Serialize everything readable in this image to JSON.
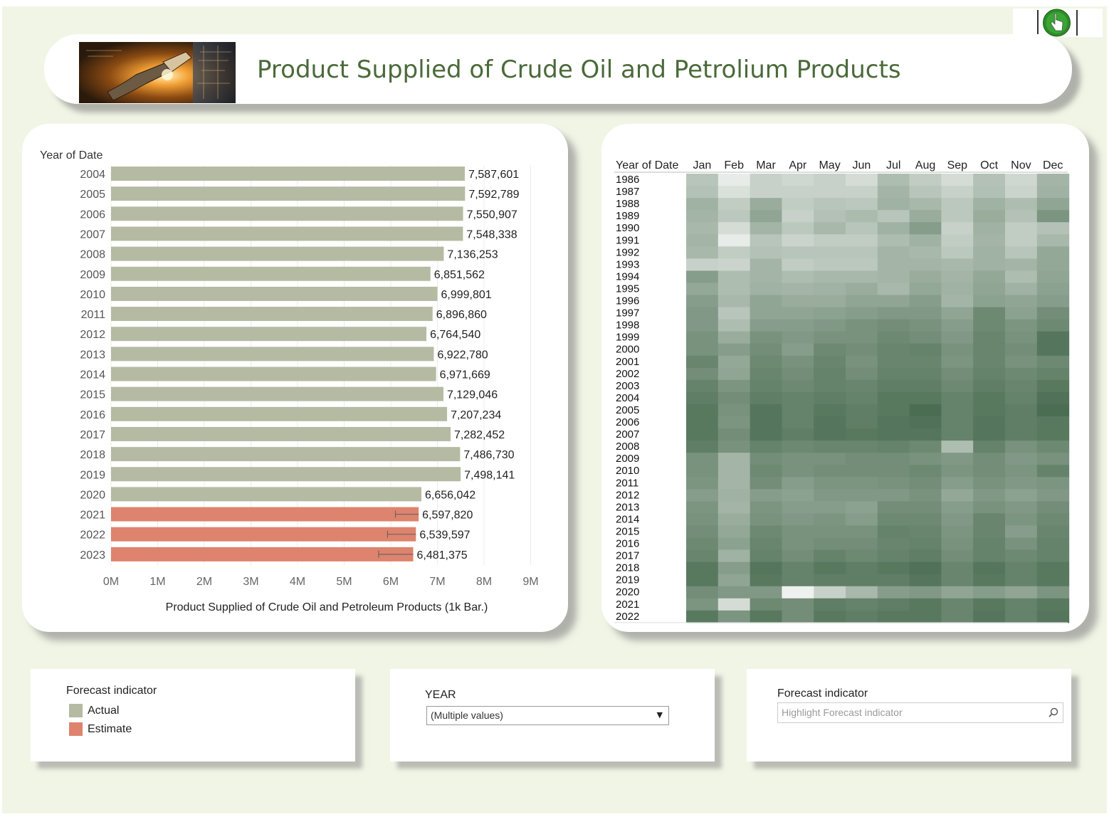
{
  "header": {
    "title": "Product Supplied of Crude Oil and Petrolium Products",
    "banner_icon": "oil-pump-nozzle-banner",
    "toolbar_icon": "hand-pointer-icon"
  },
  "colors": {
    "background": "#f1f5e6",
    "title": "#4a6a3a",
    "actual": "#b4bba2",
    "estimate": "#de836d",
    "heat_low": "#f2f4f2",
    "heat_high": "#2e5636"
  },
  "chart_data": [
    {
      "type": "bar",
      "orientation": "horizontal",
      "y_header": "Year of Date",
      "xlabel": "Product Supplied of Crude Oil and Petroleum Products (1k Bar.)",
      "xlim": [
        0,
        9000000
      ],
      "x_ticks": [
        "0M",
        "1M",
        "2M",
        "3M",
        "4M",
        "5M",
        "6M",
        "7M",
        "8M",
        "9M"
      ],
      "x_tick_values": [
        0,
        1000000,
        2000000,
        3000000,
        4000000,
        5000000,
        6000000,
        7000000,
        8000000,
        9000000
      ],
      "grid": true,
      "categories": [
        "2004",
        "2005",
        "2006",
        "2007",
        "2008",
        "2009",
        "2010",
        "2011",
        "2012",
        "2013",
        "2014",
        "2015",
        "2016",
        "2017",
        "2018",
        "2019",
        "2020",
        "2021",
        "2022",
        "2023"
      ],
      "values": [
        7587601,
        7592789,
        7550907,
        7548338,
        7136253,
        6851562,
        6999801,
        6896860,
        6764540,
        6922780,
        6971669,
        7129046,
        7207234,
        7282452,
        7486730,
        7498141,
        6656042,
        6597820,
        6539597,
        6481375
      ],
      "value_labels": [
        "7,587,601",
        "7,592,789",
        "7,550,907",
        "7,548,338",
        "7,136,253",
        "6,851,562",
        "6,999,801",
        "6,896,860",
        "6,764,540",
        "6,922,780",
        "6,971,669",
        "7,129,046",
        "7,207,234",
        "7,282,452",
        "7,486,730",
        "7,498,141",
        "6,656,042",
        "6,597,820",
        "6,539,597",
        "6,481,375"
      ],
      "forecast_indicator": [
        "Actual",
        "Actual",
        "Actual",
        "Actual",
        "Actual",
        "Actual",
        "Actual",
        "Actual",
        "Actual",
        "Actual",
        "Actual",
        "Actual",
        "Actual",
        "Actual",
        "Actual",
        "Actual",
        "Actual",
        "Estimate",
        "Estimate",
        "Estimate"
      ],
      "error_bars": [
        null,
        null,
        null,
        null,
        null,
        null,
        null,
        null,
        null,
        null,
        null,
        null,
        null,
        null,
        null,
        null,
        null,
        [
          6100000,
          6597820
        ],
        [
          5930000,
          6540000
        ],
        [
          5740000,
          6481375
        ]
      ]
    },
    {
      "type": "heatmap",
      "y_header": "Year of Date",
      "x": [
        "Jan",
        "Feb",
        "Mar",
        "Apr",
        "May",
        "Jun",
        "Jul",
        "Aug",
        "Sep",
        "Oct",
        "Nov",
        "Dec"
      ],
      "y": [
        "1986",
        "1987",
        "1988",
        "1989",
        "1990",
        "1991",
        "1992",
        "1993",
        "1994",
        "1995",
        "1996",
        "1997",
        "1998",
        "1999",
        "2000",
        "2001",
        "2002",
        "2003",
        "2004",
        "2005",
        "2006",
        "2007",
        "2008",
        "2009",
        "2010",
        "2011",
        "2012",
        "2013",
        "2014",
        "2015",
        "2016",
        "2017",
        "2018",
        "2019",
        "2020",
        "2021",
        "2022"
      ],
      "intensity_scale": "0 (lightest) to 1 (darkest green)",
      "values": [
        [
          0.3,
          0.05,
          0.22,
          0.18,
          0.22,
          0.15,
          0.35,
          0.25,
          0.15,
          0.32,
          0.18,
          0.4
        ],
        [
          0.32,
          0.12,
          0.22,
          0.22,
          0.22,
          0.22,
          0.4,
          0.3,
          0.22,
          0.33,
          0.2,
          0.42
        ],
        [
          0.42,
          0.25,
          0.45,
          0.25,
          0.3,
          0.28,
          0.42,
          0.38,
          0.28,
          0.42,
          0.35,
          0.5
        ],
        [
          0.4,
          0.28,
          0.5,
          0.22,
          0.32,
          0.36,
          0.3,
          0.45,
          0.28,
          0.45,
          0.32,
          0.6
        ],
        [
          0.38,
          0.15,
          0.4,
          0.28,
          0.38,
          0.3,
          0.42,
          0.55,
          0.22,
          0.42,
          0.25,
          0.32
        ],
        [
          0.4,
          0.05,
          0.3,
          0.2,
          0.25,
          0.25,
          0.35,
          0.42,
          0.25,
          0.4,
          0.25,
          0.38
        ],
        [
          0.38,
          0.25,
          0.32,
          0.3,
          0.3,
          0.3,
          0.4,
          0.38,
          0.28,
          0.42,
          0.3,
          0.48
        ],
        [
          0.22,
          0.2,
          0.4,
          0.25,
          0.28,
          0.28,
          0.4,
          0.4,
          0.38,
          0.42,
          0.4,
          0.48
        ],
        [
          0.55,
          0.35,
          0.4,
          0.35,
          0.38,
          0.38,
          0.4,
          0.45,
          0.4,
          0.48,
          0.35,
          0.5
        ],
        [
          0.48,
          0.35,
          0.42,
          0.4,
          0.42,
          0.45,
          0.38,
          0.48,
          0.42,
          0.5,
          0.42,
          0.52
        ],
        [
          0.55,
          0.38,
          0.5,
          0.45,
          0.45,
          0.5,
          0.5,
          0.55,
          0.4,
          0.52,
          0.5,
          0.55
        ],
        [
          0.58,
          0.3,
          0.5,
          0.5,
          0.52,
          0.55,
          0.58,
          0.58,
          0.5,
          0.68,
          0.52,
          0.65
        ],
        [
          0.58,
          0.35,
          0.55,
          0.55,
          0.58,
          0.62,
          0.65,
          0.62,
          0.55,
          0.68,
          0.6,
          0.68
        ],
        [
          0.62,
          0.45,
          0.62,
          0.58,
          0.62,
          0.62,
          0.68,
          0.65,
          0.58,
          0.7,
          0.62,
          0.8
        ],
        [
          0.62,
          0.55,
          0.65,
          0.55,
          0.68,
          0.65,
          0.7,
          0.72,
          0.62,
          0.7,
          0.65,
          0.8
        ],
        [
          0.7,
          0.48,
          0.68,
          0.62,
          0.7,
          0.62,
          0.7,
          0.7,
          0.6,
          0.7,
          0.62,
          0.68
        ],
        [
          0.65,
          0.5,
          0.7,
          0.65,
          0.72,
          0.65,
          0.72,
          0.72,
          0.65,
          0.72,
          0.68,
          0.72
        ],
        [
          0.72,
          0.6,
          0.72,
          0.68,
          0.72,
          0.7,
          0.75,
          0.75,
          0.68,
          0.75,
          0.7,
          0.78
        ],
        [
          0.75,
          0.65,
          0.75,
          0.72,
          0.75,
          0.72,
          0.78,
          0.78,
          0.72,
          0.78,
          0.72,
          0.82
        ],
        [
          0.78,
          0.62,
          0.8,
          0.72,
          0.78,
          0.75,
          0.78,
          0.85,
          0.72,
          0.78,
          0.75,
          0.85
        ],
        [
          0.78,
          0.6,
          0.8,
          0.72,
          0.8,
          0.75,
          0.8,
          0.82,
          0.72,
          0.8,
          0.75,
          0.78
        ],
        [
          0.78,
          0.65,
          0.8,
          0.75,
          0.8,
          0.78,
          0.8,
          0.8,
          0.72,
          0.8,
          0.75,
          0.78
        ],
        [
          0.75,
          0.62,
          0.72,
          0.68,
          0.7,
          0.7,
          0.72,
          0.68,
          0.35,
          0.72,
          0.62,
          0.68
        ],
        [
          0.62,
          0.4,
          0.65,
          0.62,
          0.62,
          0.65,
          0.65,
          0.62,
          0.58,
          0.65,
          0.58,
          0.62
        ],
        [
          0.62,
          0.4,
          0.68,
          0.62,
          0.65,
          0.65,
          0.65,
          0.68,
          0.6,
          0.65,
          0.6,
          0.72
        ],
        [
          0.6,
          0.4,
          0.65,
          0.55,
          0.6,
          0.6,
          0.62,
          0.65,
          0.55,
          0.62,
          0.58,
          0.6
        ],
        [
          0.55,
          0.42,
          0.55,
          0.52,
          0.58,
          0.58,
          0.58,
          0.62,
          0.48,
          0.58,
          0.52,
          0.58
        ],
        [
          0.6,
          0.4,
          0.6,
          0.55,
          0.55,
          0.52,
          0.65,
          0.65,
          0.55,
          0.62,
          0.58,
          0.65
        ],
        [
          0.62,
          0.45,
          0.62,
          0.58,
          0.6,
          0.55,
          0.68,
          0.68,
          0.58,
          0.7,
          0.6,
          0.68
        ],
        [
          0.65,
          0.48,
          0.68,
          0.62,
          0.62,
          0.62,
          0.72,
          0.7,
          0.6,
          0.7,
          0.55,
          0.7
        ],
        [
          0.68,
          0.52,
          0.7,
          0.62,
          0.65,
          0.65,
          0.7,
          0.72,
          0.62,
          0.72,
          0.62,
          0.72
        ],
        [
          0.7,
          0.42,
          0.72,
          0.65,
          0.72,
          0.68,
          0.72,
          0.75,
          0.65,
          0.72,
          0.68,
          0.72
        ],
        [
          0.78,
          0.55,
          0.8,
          0.72,
          0.78,
          0.75,
          0.78,
          0.82,
          0.7,
          0.8,
          0.72,
          0.78
        ],
        [
          0.78,
          0.5,
          0.78,
          0.72,
          0.75,
          0.75,
          0.75,
          0.8,
          0.7,
          0.78,
          0.72,
          0.78
        ],
        [
          0.65,
          0.58,
          0.58,
          0.02,
          0.22,
          0.38,
          0.55,
          0.58,
          0.5,
          0.55,
          0.5,
          0.6
        ],
        [
          0.6,
          0.15,
          0.68,
          0.65,
          0.75,
          0.72,
          0.75,
          0.78,
          0.7,
          0.78,
          0.72,
          0.78
        ],
        [
          0.78,
          0.6,
          0.78,
          0.65,
          0.78,
          0.75,
          0.78,
          0.78,
          0.7,
          0.8,
          0.72,
          0.8
        ]
      ]
    }
  ],
  "legend": {
    "title": "Forecast indicator",
    "items": [
      {
        "label": "Actual",
        "color": "#b4bba2"
      },
      {
        "label": "Estimate",
        "color": "#de836d"
      }
    ]
  },
  "year_filter": {
    "title": "YEAR",
    "value": "(Multiple values)",
    "icon": "dropdown-arrow-icon"
  },
  "highlight": {
    "title": "Forecast indicator",
    "placeholder": "Highlight Forecast indicator",
    "icon": "search-icon"
  }
}
